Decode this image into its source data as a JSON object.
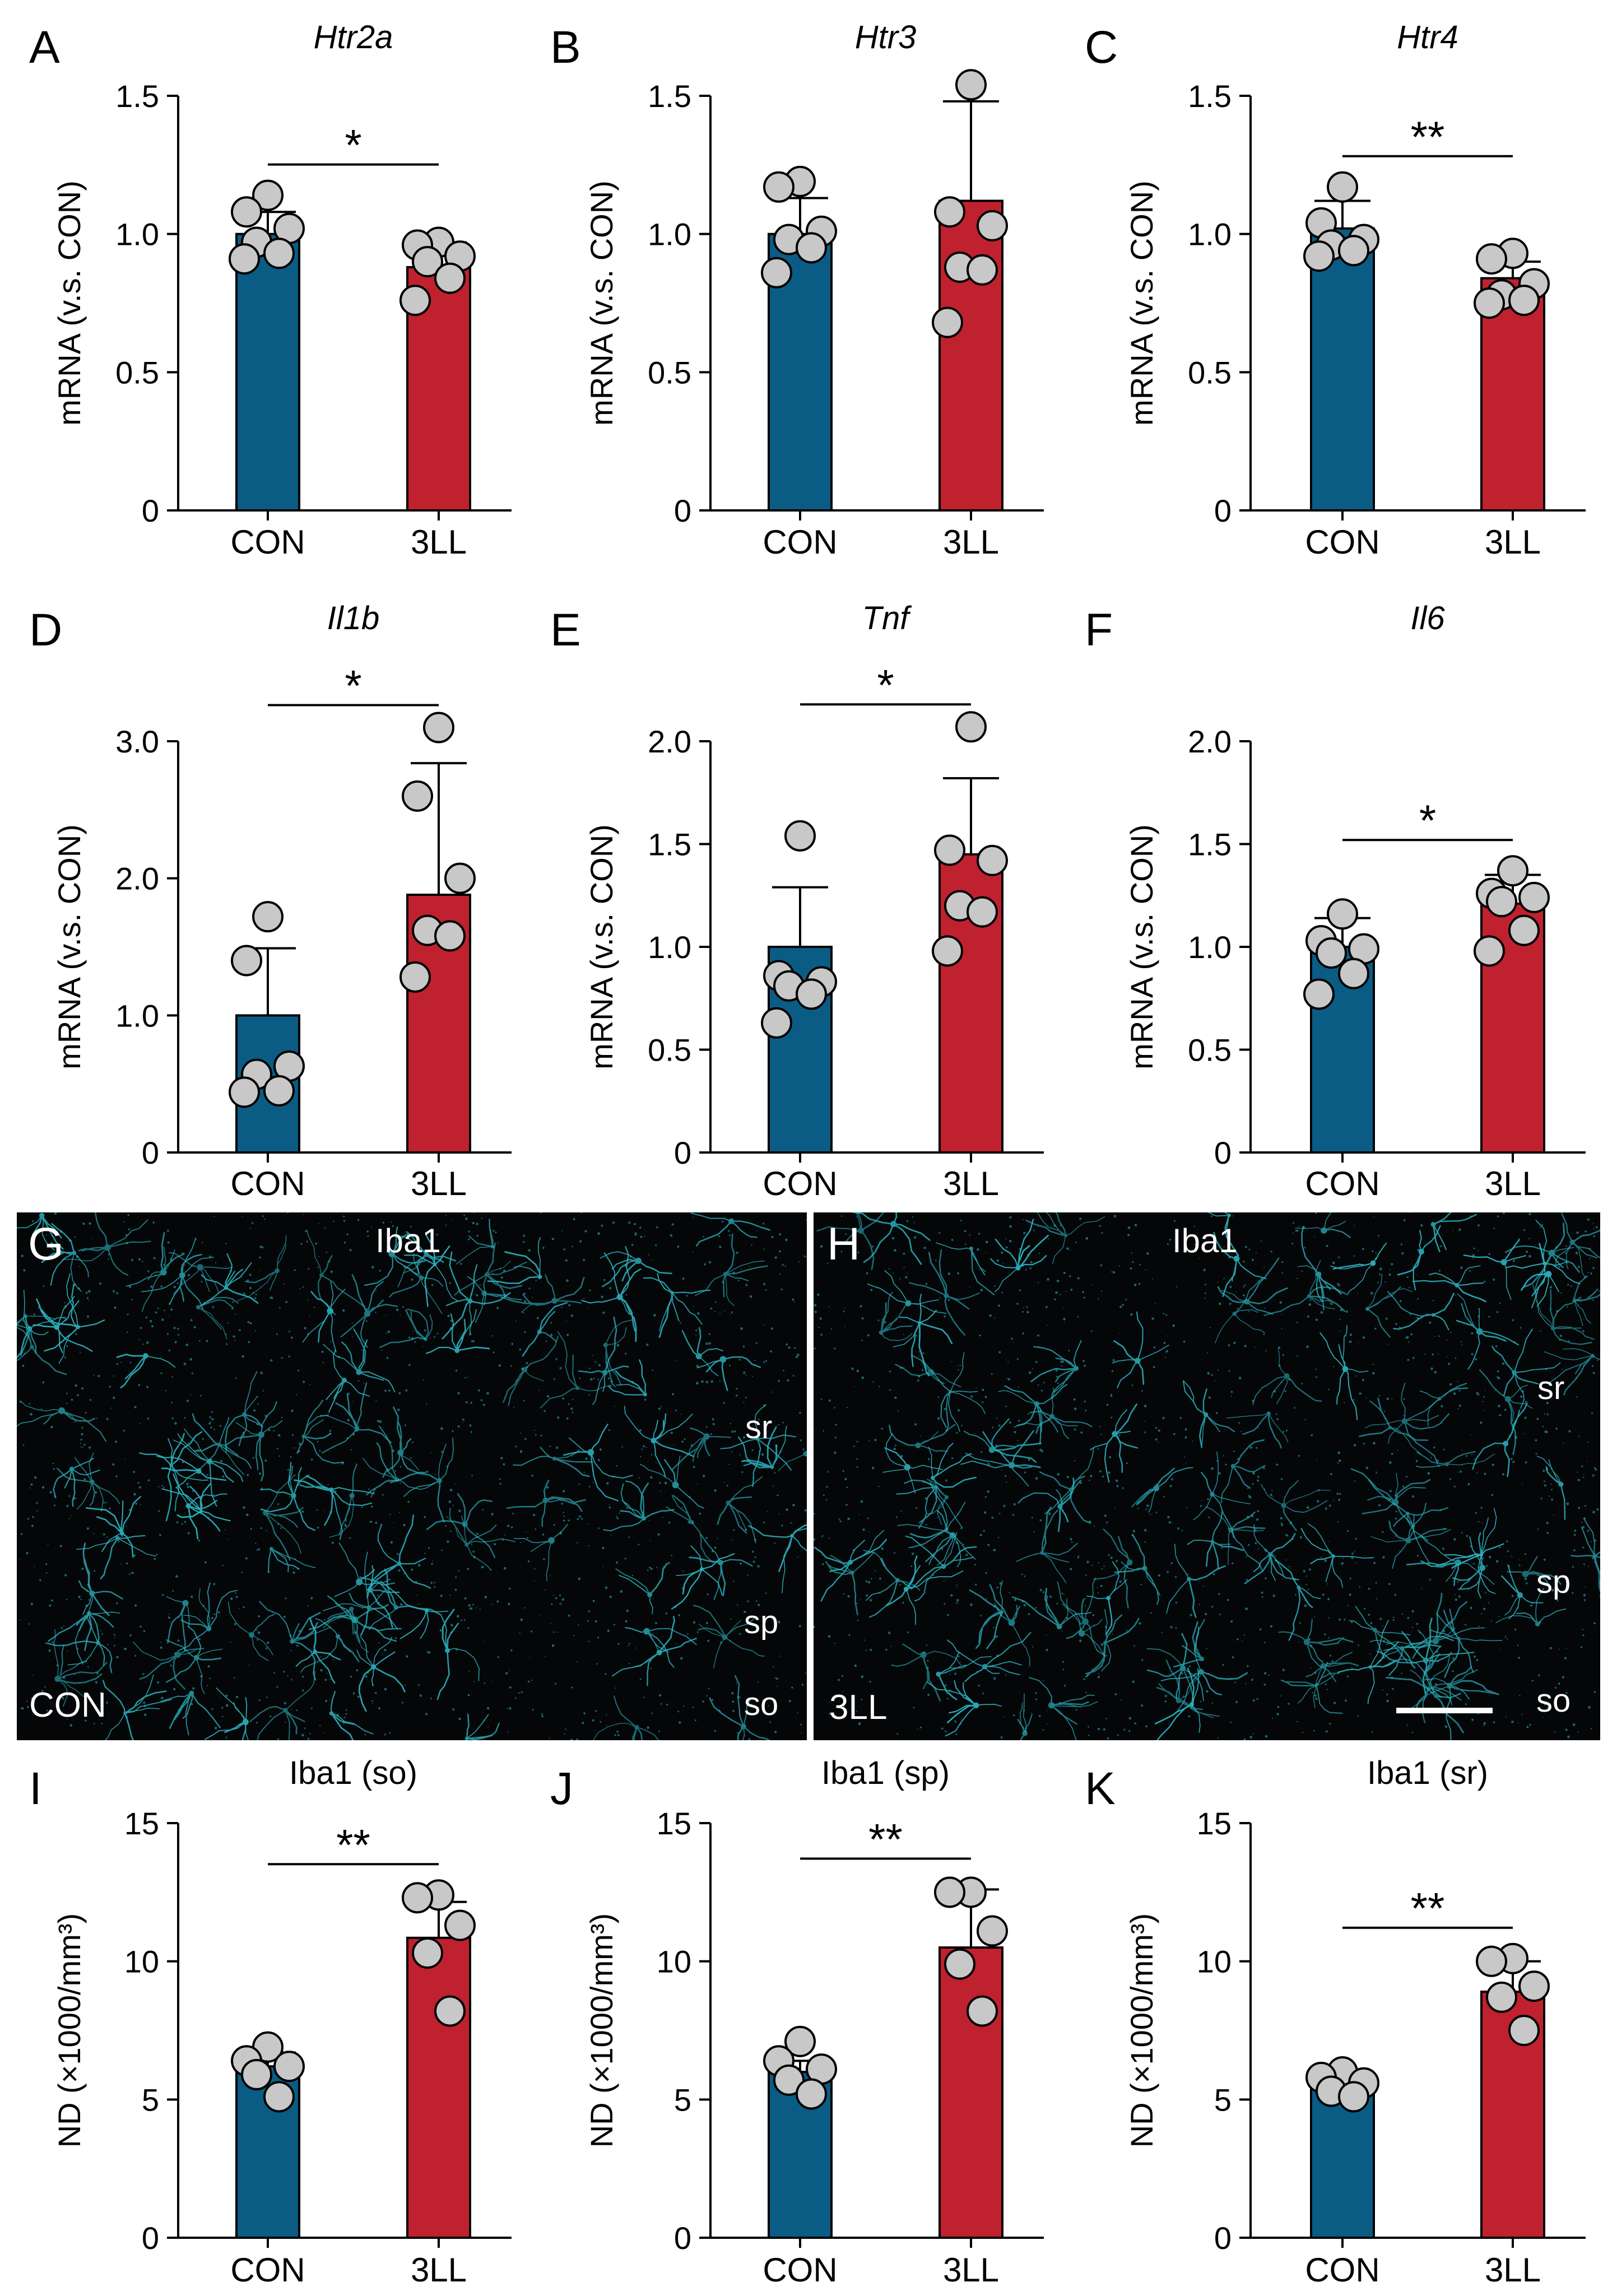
{
  "colors": {
    "con": "#0b5c85",
    "ll": "#c0212f",
    "point": "#c8c8c8",
    "microglia": "#2bb5c1",
    "tissue_bg": "#050608"
  },
  "chart_data": [
    {
      "panel": "A",
      "type": "bar",
      "title": "Htr2a",
      "title_italic": true,
      "ylabel": "mRNA (v.s. CON)",
      "categories": [
        "CON",
        "3LL"
      ],
      "ylim": [
        0,
        1.5
      ],
      "yticks": [
        0,
        0.5,
        1.0,
        1.5
      ],
      "tick_labels": [
        "0",
        "0.5",
        "1.0",
        "1.5"
      ],
      "means": [
        1.0,
        0.88
      ],
      "sd": [
        0.08,
        0.09
      ],
      "sig": "*",
      "points": [
        [
          1.14,
          1.08,
          1.02,
          0.97,
          0.93,
          0.91
        ],
        [
          0.97,
          0.96,
          0.92,
          0.9,
          0.84,
          0.76
        ]
      ]
    },
    {
      "panel": "B",
      "type": "bar",
      "title": "Htr3",
      "title_italic": true,
      "ylabel": "mRNA (v.s. CON)",
      "categories": [
        "CON",
        "3LL"
      ],
      "ylim": [
        0,
        1.5
      ],
      "yticks": [
        0,
        0.5,
        1.0,
        1.5
      ],
      "tick_labels": [
        "0",
        "0.5",
        "1.0",
        "1.5"
      ],
      "means": [
        1.0,
        1.12
      ],
      "sd": [
        0.13,
        0.36
      ],
      "sig": "",
      "points": [
        [
          1.19,
          1.17,
          1.01,
          0.98,
          0.95,
          0.86
        ],
        [
          1.54,
          1.08,
          1.03,
          0.88,
          0.87,
          0.68
        ]
      ]
    },
    {
      "panel": "C",
      "type": "bar",
      "title": "Htr4",
      "title_italic": true,
      "ylabel": "mRNA (v.s. CON)",
      "categories": [
        "CON",
        "3LL"
      ],
      "ylim": [
        0,
        1.5
      ],
      "yticks": [
        0,
        0.5,
        1.0,
        1.5
      ],
      "tick_labels": [
        "0",
        "0.5",
        "1.0",
        "1.5"
      ],
      "means": [
        1.02,
        0.84
      ],
      "sd": [
        0.1,
        0.06
      ],
      "sig": "**",
      "points": [
        [
          1.17,
          1.04,
          0.98,
          0.96,
          0.94,
          0.92
        ],
        [
          0.93,
          0.91,
          0.82,
          0.78,
          0.76,
          0.75
        ]
      ]
    },
    {
      "panel": "D",
      "type": "bar",
      "title": "Il1b",
      "title_italic": true,
      "ylabel": "mRNA (v.s. CON)",
      "categories": [
        "CON",
        "3LL"
      ],
      "ylim": [
        0,
        3.0
      ],
      "yticks": [
        0,
        1.0,
        2.0,
        3.0
      ],
      "tick_labels": [
        "0",
        "1.0",
        "2.0",
        "3.0"
      ],
      "means": [
        1.0,
        1.88
      ],
      "sd": [
        0.49,
        0.96
      ],
      "sig": "*",
      "points": [
        [
          1.72,
          1.4,
          0.63,
          0.57,
          0.45,
          0.44
        ],
        [
          3.1,
          2.6,
          2.0,
          1.62,
          1.58,
          1.28
        ]
      ]
    },
    {
      "panel": "E",
      "type": "bar",
      "title": "Tnf",
      "title_italic": true,
      "ylabel": "mRNA (v.s. CON)",
      "categories": [
        "CON",
        "3LL"
      ],
      "ylim": [
        0,
        2.0
      ],
      "yticks": [
        0,
        0.5,
        1.0,
        1.5,
        2.0
      ],
      "tick_labels": [
        "0",
        "0.5",
        "1.0",
        "1.5",
        "2.0"
      ],
      "means": [
        1.0,
        1.45
      ],
      "sd": [
        0.29,
        0.37
      ],
      "sig": "*",
      "points": [
        [
          1.54,
          0.86,
          0.83,
          0.81,
          0.77,
          0.63
        ],
        [
          2.07,
          1.47,
          1.42,
          1.2,
          1.17,
          0.98
        ]
      ]
    },
    {
      "panel": "F",
      "type": "bar",
      "title": "Il6",
      "title_italic": true,
      "ylabel": "mRNA (v.s. CON)",
      "categories": [
        "CON",
        "3LL"
      ],
      "ylim": [
        0,
        2.0
      ],
      "yticks": [
        0,
        0.5,
        1.0,
        1.5,
        2.0
      ],
      "tick_labels": [
        "0",
        "0.5",
        "1.0",
        "1.5",
        "2.0"
      ],
      "means": [
        1.0,
        1.21
      ],
      "sd": [
        0.14,
        0.14
      ],
      "sig": "*",
      "points": [
        [
          1.16,
          1.03,
          0.99,
          0.97,
          0.87,
          0.77
        ],
        [
          1.37,
          1.26,
          1.24,
          1.22,
          1.08,
          0.98
        ]
      ]
    },
    {
      "panel": "I",
      "type": "bar",
      "title": "Iba1 (so)",
      "title_italic": false,
      "ylabel": "ND (×1000/mm³)",
      "categories": [
        "CON",
        "3LL"
      ],
      "ylim": [
        0,
        15
      ],
      "yticks": [
        0,
        5,
        10,
        15
      ],
      "tick_labels": [
        "0",
        "5",
        "10",
        "15"
      ],
      "means": [
        6.2,
        10.85
      ],
      "sd": [
        0.5,
        1.3
      ],
      "sig": "**",
      "points": [
        [
          6.9,
          6.4,
          6.2,
          5.9,
          5.1
        ],
        [
          12.4,
          12.3,
          11.3,
          10.3,
          8.2
        ]
      ]
    },
    {
      "panel": "J",
      "type": "bar",
      "title": "Iba1 (sp)",
      "title_italic": false,
      "ylabel": "ND (×1000/mm³)",
      "categories": [
        "CON",
        "3LL"
      ],
      "ylim": [
        0,
        15
      ],
      "yticks": [
        0,
        5,
        10,
        15
      ],
      "tick_labels": [
        "0",
        "5",
        "10",
        "15"
      ],
      "means": [
        6.0,
        10.5
      ],
      "sd": [
        0.4,
        2.1
      ],
      "sig": "**",
      "points": [
        [
          7.1,
          6.4,
          6.1,
          5.7,
          5.2
        ],
        [
          12.5,
          12.5,
          11.1,
          9.9,
          8.2
        ]
      ]
    },
    {
      "panel": "K",
      "type": "bar",
      "title": "Iba1 (sr)",
      "title_italic": false,
      "ylabel": "ND (×1000/mm³)",
      "categories": [
        "CON",
        "3LL"
      ],
      "ylim": [
        0,
        15
      ],
      "yticks": [
        0,
        5,
        10,
        15
      ],
      "tick_labels": [
        "0",
        "5",
        "10",
        "15"
      ],
      "means": [
        5.6,
        8.9
      ],
      "sd": [
        0.25,
        1.1
      ],
      "sig": "**",
      "points": [
        [
          6.0,
          5.8,
          5.6,
          5.3,
          5.1
        ],
        [
          10.1,
          10.0,
          9.1,
          8.7,
          7.5
        ]
      ]
    }
  ],
  "micrographs": [
    {
      "panel": "G",
      "stain": "Iba1",
      "condition": "CON",
      "layers": [
        "sr",
        "sp",
        "so"
      ]
    },
    {
      "panel": "H",
      "stain": "Iba1",
      "condition": "3LL",
      "layers": [
        "sr",
        "sp",
        "so"
      ]
    }
  ]
}
